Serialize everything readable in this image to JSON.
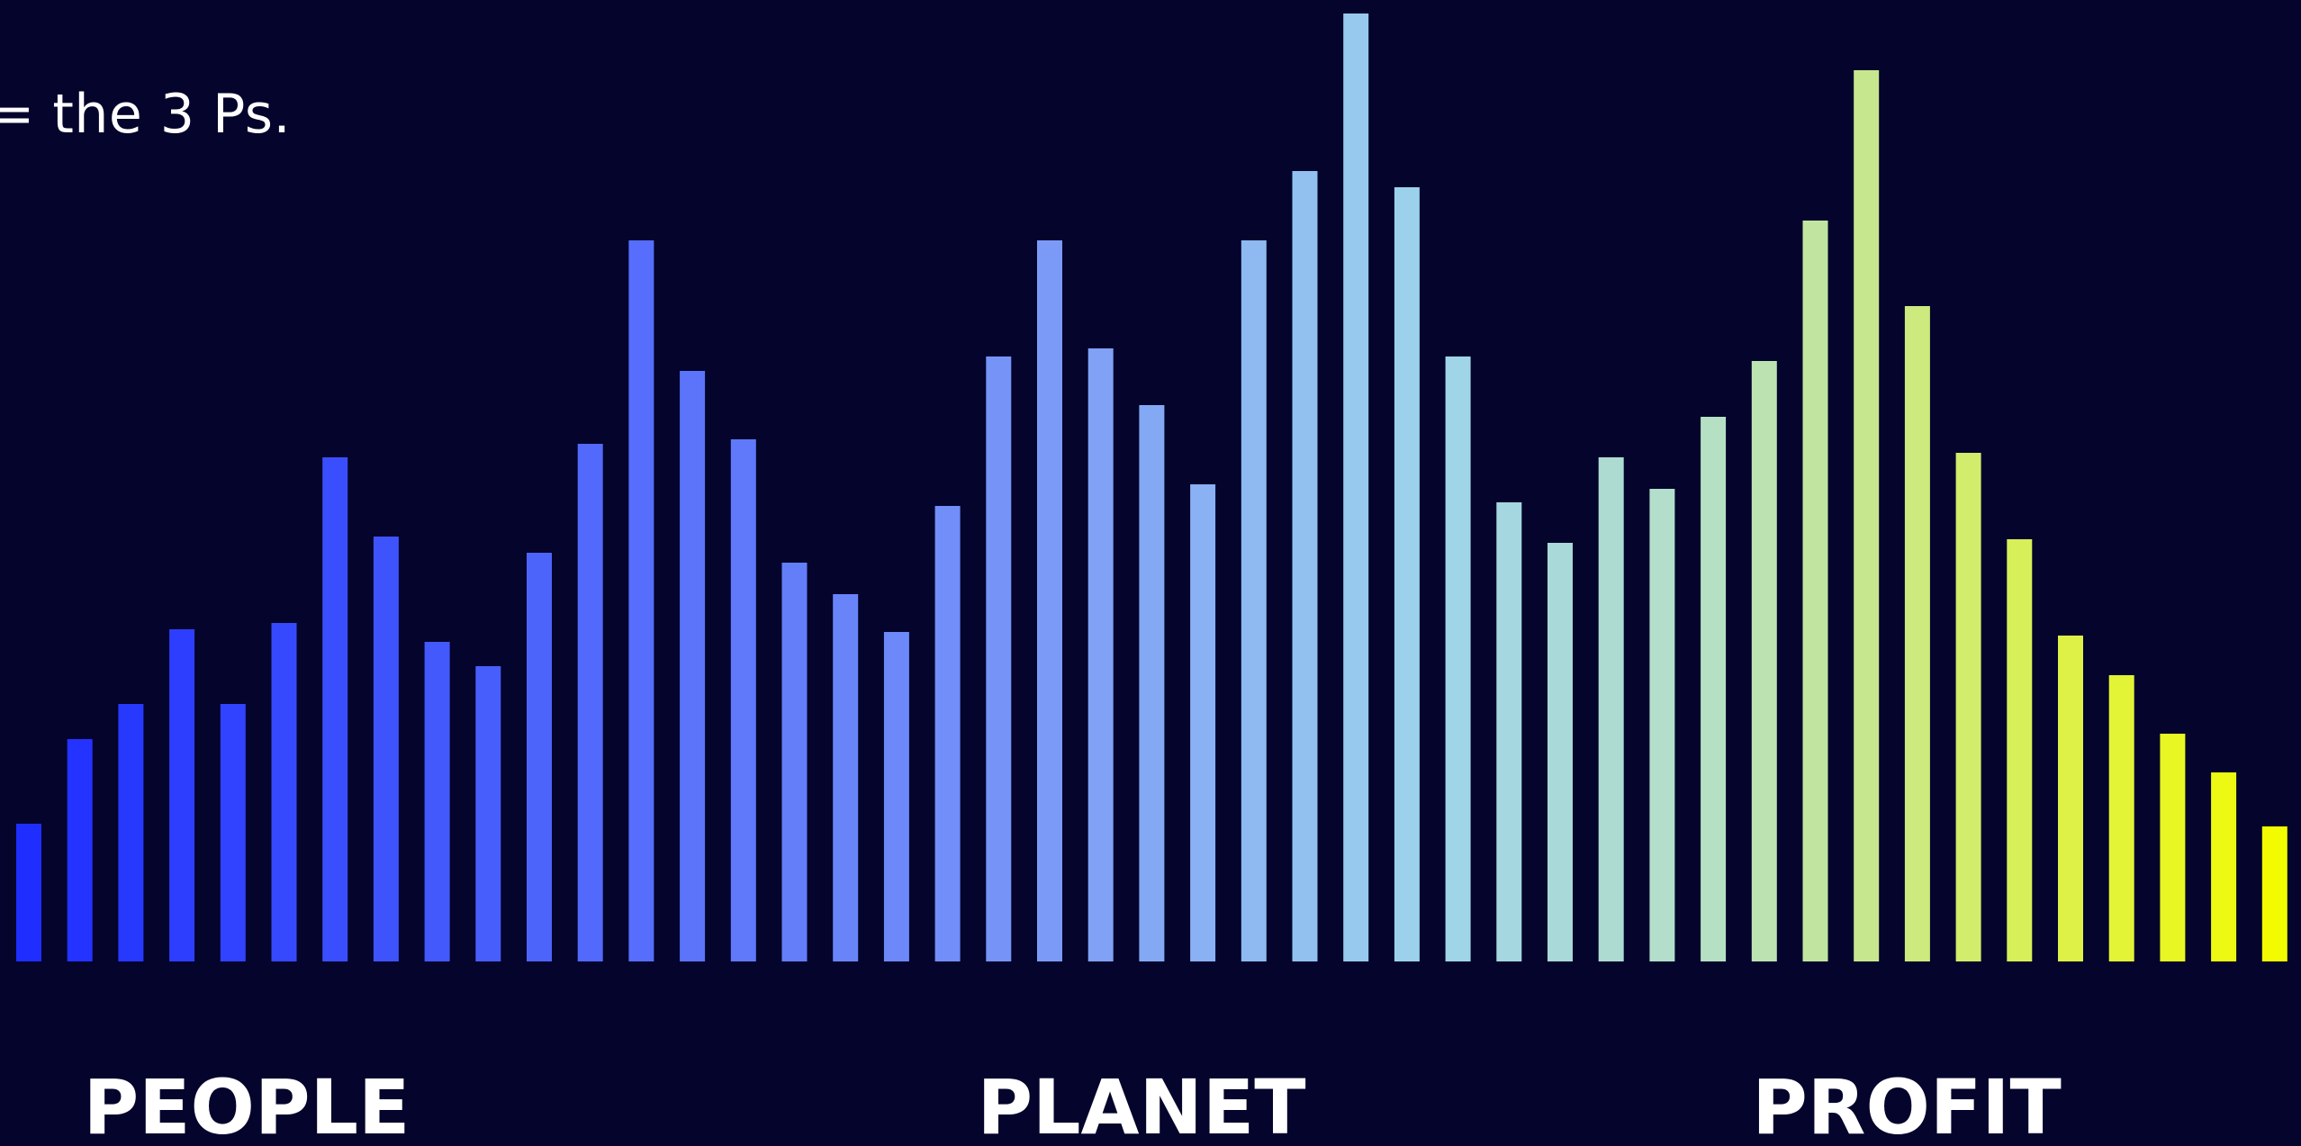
{
  "caption": "= the 3 Ps.",
  "labels": {
    "people": "PEOPLE",
    "planet": "PLANET",
    "profit": "PROFIT"
  },
  "colors": {
    "background": "#04042c",
    "gradient_start": "#1f2eff",
    "gradient_mid_blue": "#7a98f8",
    "gradient_light": "#9dd3ec",
    "gradient_pale": "#b6e0c4",
    "gradient_end": "#f3fb00"
  },
  "chart_data": {
    "type": "bar",
    "values": [
      153,
      247,
      286,
      369,
      286,
      376,
      560,
      472,
      355,
      328,
      454,
      575,
      801,
      656,
      580,
      443,
      408,
      366,
      506,
      672,
      801,
      681,
      618,
      530,
      801,
      878,
      1053,
      860,
      672,
      510,
      465,
      560,
      525,
      605,
      667,
      823,
      990,
      728,
      565,
      469,
      362,
      318,
      253,
      210,
      150
    ]
  }
}
